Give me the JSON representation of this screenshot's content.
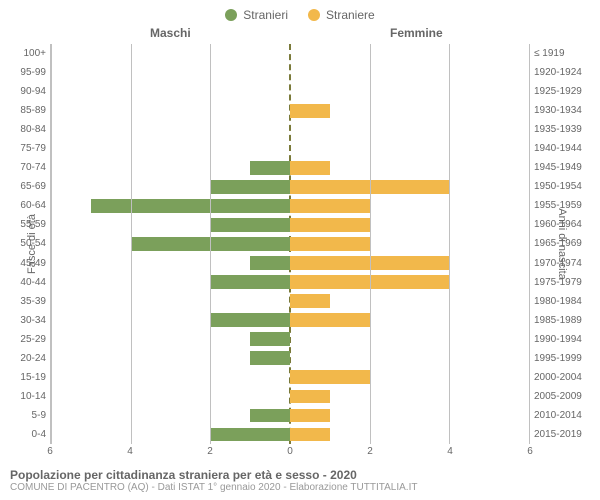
{
  "chart": {
    "type": "population-pyramid",
    "legend": [
      {
        "label": "Stranieri",
        "color": "#7ba05b"
      },
      {
        "label": "Straniere",
        "color": "#f2b84b"
      }
    ],
    "section_titles": {
      "left": "Maschi",
      "right": "Femmine"
    },
    "yaxis_left_label": "Fasce di età",
    "yaxis_right_label": "Anni di nascita",
    "x_max": 6,
    "x_ticks": [
      6,
      4,
      2,
      0,
      2,
      4,
      6
    ],
    "gridline_color": "#c0c0c0",
    "centerline_color": "#7a7a3a",
    "bar_color_male": "#7ba05b",
    "bar_color_female": "#f2b84b",
    "background_color": "#ffffff",
    "rows": [
      {
        "age": "100+",
        "birth": "≤ 1919",
        "male": 0,
        "female": 0
      },
      {
        "age": "95-99",
        "birth": "1920-1924",
        "male": 0,
        "female": 0
      },
      {
        "age": "90-94",
        "birth": "1925-1929",
        "male": 0,
        "female": 0
      },
      {
        "age": "85-89",
        "birth": "1930-1934",
        "male": 0,
        "female": 1
      },
      {
        "age": "80-84",
        "birth": "1935-1939",
        "male": 0,
        "female": 0
      },
      {
        "age": "75-79",
        "birth": "1940-1944",
        "male": 0,
        "female": 0
      },
      {
        "age": "70-74",
        "birth": "1945-1949",
        "male": 1,
        "female": 1
      },
      {
        "age": "65-69",
        "birth": "1950-1954",
        "male": 2,
        "female": 4
      },
      {
        "age": "60-64",
        "birth": "1955-1959",
        "male": 5,
        "female": 2
      },
      {
        "age": "55-59",
        "birth": "1960-1964",
        "male": 2,
        "female": 2
      },
      {
        "age": "50-54",
        "birth": "1965-1969",
        "male": 4,
        "female": 2
      },
      {
        "age": "45-49",
        "birth": "1970-1974",
        "male": 1,
        "female": 4
      },
      {
        "age": "40-44",
        "birth": "1975-1979",
        "male": 2,
        "female": 4
      },
      {
        "age": "35-39",
        "birth": "1980-1984",
        "male": 0,
        "female": 1
      },
      {
        "age": "30-34",
        "birth": "1985-1989",
        "male": 2,
        "female": 2
      },
      {
        "age": "25-29",
        "birth": "1990-1994",
        "male": 1,
        "female": 0
      },
      {
        "age": "20-24",
        "birth": "1995-1999",
        "male": 1,
        "female": 0
      },
      {
        "age": "15-19",
        "birth": "2000-2004",
        "male": 0,
        "female": 2
      },
      {
        "age": "10-14",
        "birth": "2005-2009",
        "male": 0,
        "female": 1
      },
      {
        "age": "5-9",
        "birth": "2010-2014",
        "male": 1,
        "female": 1
      },
      {
        "age": "0-4",
        "birth": "2015-2019",
        "male": 2,
        "female": 1
      }
    ],
    "title": "Popolazione per cittadinanza straniera per età e sesso - 2020",
    "subtitle": "COMUNE DI PACENTRO (AQ) - Dati ISTAT 1° gennaio 2020 - Elaborazione TUTTITALIA.IT",
    "tick_fontsize": 10,
    "label_fontsize": 11,
    "title_fontsize": 12
  }
}
